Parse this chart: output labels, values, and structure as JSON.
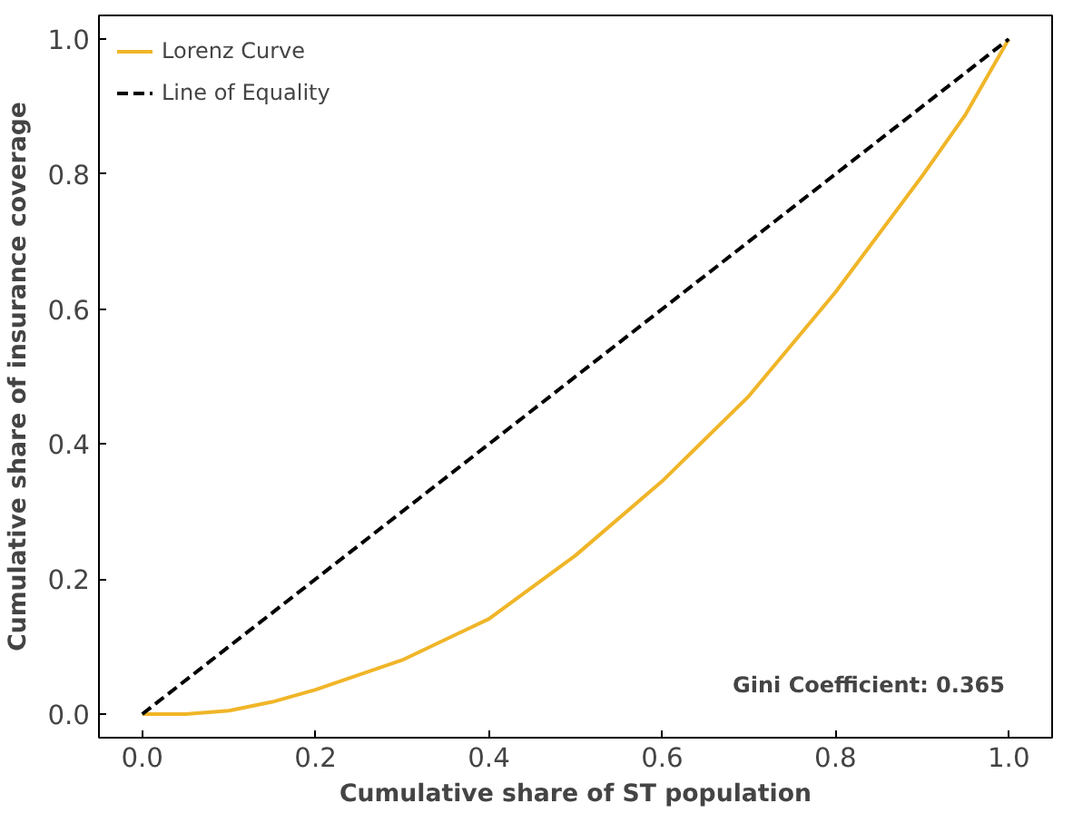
{
  "chart_data": {
    "type": "line",
    "xlabel": "Cumulative share of ST population",
    "ylabel": "Cumulative share of insurance coverage",
    "xlim": [
      -0.05,
      1.05
    ],
    "ylim": [
      -0.035,
      1.035
    ],
    "xticks": [
      {
        "value": 0,
        "label": "0.0"
      },
      {
        "value": 0.2,
        "label": "0.2"
      },
      {
        "value": 0.4,
        "label": "0.4"
      },
      {
        "value": 0.6,
        "label": "0.6"
      },
      {
        "value": 0.8,
        "label": "0.8"
      },
      {
        "value": 1,
        "label": "1.0"
      }
    ],
    "yticks": [
      {
        "value": 0,
        "label": "0.0"
      },
      {
        "value": 0.2,
        "label": "0.2"
      },
      {
        "value": 0.4,
        "label": "0.4"
      },
      {
        "value": 0.6,
        "label": "0.6"
      },
      {
        "value": 0.8,
        "label": "0.8"
      },
      {
        "value": 1,
        "label": "1.0"
      }
    ],
    "series": [
      {
        "name": "Lorenz Curve",
        "color": "#f0b528",
        "line_style": "solid",
        "x": [
          0,
          0.05,
          0.1,
          0.15,
          0.2,
          0.3,
          0.4,
          0.5,
          0.6,
          0.7,
          0.8,
          0.9,
          0.95,
          1.0
        ],
        "values": [
          0,
          0,
          0.005,
          0.018,
          0.036,
          0.08,
          0.141,
          0.235,
          0.345,
          0.471,
          0.625,
          0.797,
          0.888,
          1.0
        ]
      },
      {
        "name": "Line of Equality",
        "color": "#000000",
        "line_style": "dashed",
        "x": [
          0,
          1
        ],
        "values": [
          0,
          1
        ]
      }
    ],
    "annotations": [
      "Gini Coefficient: 0.365"
    ],
    "legend": "top left",
    "grid": false
  }
}
